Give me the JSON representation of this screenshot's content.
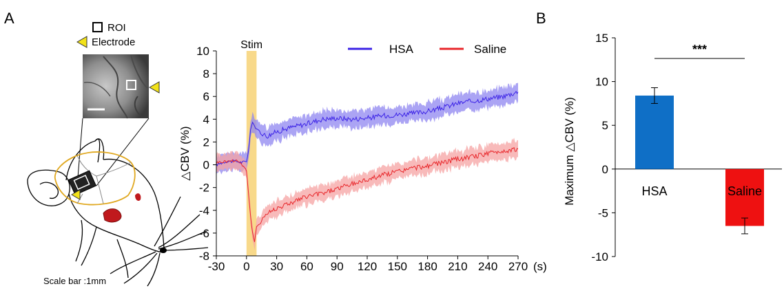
{
  "panel_a": {
    "label": "A",
    "legend_roi": "ROI",
    "legend_electrode": "Electrode",
    "scale_bar": "Scale bar :1mm"
  },
  "panel_b": {
    "label": "B"
  },
  "colors": {
    "hsa": "#3b22e6",
    "hsa_band": "#8f85f0",
    "saline": "#e8262a",
    "saline_band": "#f5a3a3",
    "stim": "#f8d98a",
    "electrode": "#f2e21a",
    "cortex_outline": "#e0a820",
    "bar_hsa": "#0f6fc6",
    "bar_saline": "#ee1111",
    "vessel": "#c0191d"
  },
  "icons": [
    "roi-square-icon",
    "electrode-triangle-icon",
    "rat-head-drawing",
    "cortex-image-inset"
  ],
  "chart_data": [
    {
      "type": "line",
      "title": "",
      "annotation": "Stim",
      "stim_window": [
        0,
        10
      ],
      "xlabel": "(s)",
      "ylabel": "△CBV (%)",
      "xlim": [
        -30,
        270
      ],
      "ylim": [
        -8,
        10
      ],
      "xticks": [
        "-30",
        "0",
        "30",
        "60",
        "90",
        "120",
        "150",
        "180",
        "210",
        "240",
        "270"
      ],
      "yticks": [
        "-8",
        "-6",
        "-4",
        "-2",
        "0",
        "2",
        "4",
        "6",
        "8",
        "10"
      ],
      "grid": false,
      "legend": "top-right",
      "series": [
        {
          "name": "HSA",
          "x": [
            -30,
            -20,
            -10,
            -5,
            0,
            2,
            4,
            6,
            8,
            10,
            15,
            20,
            30,
            45,
            60,
            75,
            90,
            105,
            120,
            135,
            150,
            165,
            180,
            195,
            210,
            225,
            240,
            255,
            270
          ],
          "y": [
            0.0,
            0.3,
            0.3,
            0.2,
            0.3,
            1.2,
            3.0,
            3.8,
            3.4,
            3.1,
            2.8,
            2.5,
            2.9,
            3.3,
            3.6,
            4.0,
            4.1,
            4.0,
            4.1,
            4.3,
            4.4,
            4.5,
            4.7,
            5.0,
            5.4,
            5.6,
            5.8,
            6.0,
            6.4
          ],
          "band": 0.8
        },
        {
          "name": "Saline",
          "x": [
            -30,
            -20,
            -10,
            -5,
            0,
            2,
            4,
            6,
            8,
            10,
            15,
            20,
            30,
            45,
            60,
            75,
            90,
            105,
            120,
            135,
            150,
            165,
            180,
            195,
            210,
            225,
            240,
            255,
            270
          ],
          "y": [
            0.2,
            0.3,
            0.4,
            0.1,
            -0.5,
            -2.5,
            -4.5,
            -6.0,
            -6.8,
            -5.5,
            -4.8,
            -4.3,
            -3.8,
            -3.3,
            -2.8,
            -2.5,
            -2.1,
            -1.7,
            -1.3,
            -0.9,
            -0.6,
            -0.3,
            -0.1,
            0.2,
            0.5,
            0.7,
            1.0,
            1.2,
            1.4
          ],
          "band": 0.75
        }
      ]
    },
    {
      "type": "bar",
      "title": "",
      "categories": [
        "HSA",
        "Saline"
      ],
      "values": [
        8.4,
        -6.5
      ],
      "errors": [
        0.9,
        0.9
      ],
      "ylabel": "Maximum  △CBV (%)",
      "ylim": [
        -10,
        15
      ],
      "yticks": [
        "-10",
        "-5",
        "0",
        "5",
        "10",
        "15"
      ],
      "significance": "***",
      "grid": false
    }
  ]
}
